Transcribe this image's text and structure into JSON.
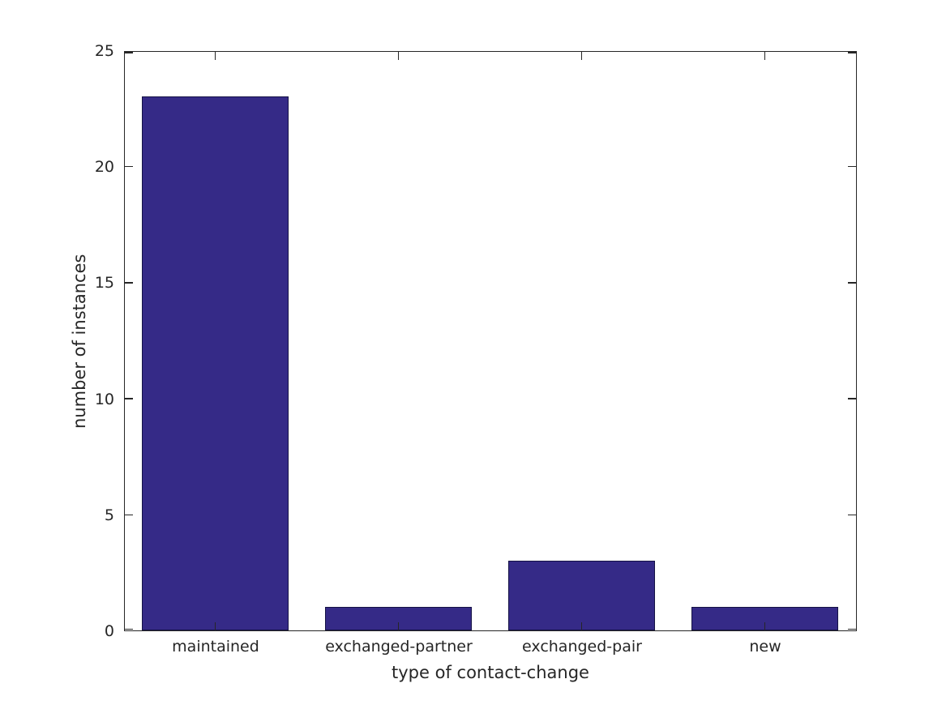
{
  "chart_data": {
    "type": "bar",
    "title": "",
    "xlabel": "type of contact-change",
    "ylabel": "number of instances",
    "categories": [
      "maintained",
      "exchanged-partner",
      "exchanged-pair",
      "new"
    ],
    "values": [
      23,
      1,
      3,
      1
    ],
    "ylim": [
      0,
      25
    ],
    "yticks": [
      "0",
      "5",
      "10",
      "15",
      "20",
      "25"
    ],
    "bar_width_fraction": 0.8,
    "bar_color": "#352a87",
    "bar_edge_color": "#151245",
    "axis_color": "#262626",
    "grid": false,
    "legend": null,
    "tick_direction": "in",
    "box": true
  }
}
